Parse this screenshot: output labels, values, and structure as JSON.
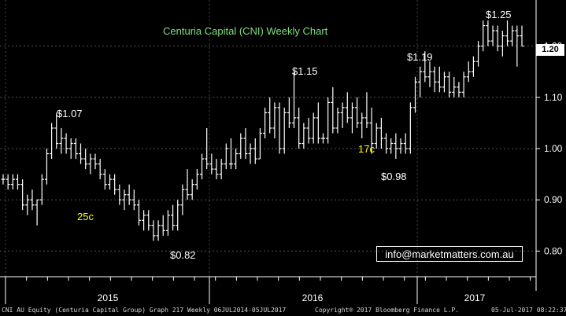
{
  "chart_data": {
    "type": "ohlc",
    "title": "Centuria Capital (CNI) Weekly Chart",
    "frequency": "weekly",
    "yticks": [
      0.8,
      0.9,
      1.0,
      1.1,
      1.2
    ],
    "ytick_labels": [
      "0.80",
      "0.90",
      "1.00",
      "1.10",
      "1.20"
    ],
    "ylim": [
      0.75,
      1.29
    ],
    "last_price": 1.2,
    "last_price_label": "1.20",
    "year_labels": [
      "2015",
      "2016",
      "2017"
    ],
    "annotations": [
      {
        "text": "$1.07",
        "color": "#ffffff"
      },
      {
        "text": "25c",
        "color": "#ffff00"
      },
      {
        "text": "$0.82",
        "color": "#ffffff"
      },
      {
        "text": "$1.15",
        "color": "#ffffff"
      },
      {
        "text": "17c",
        "color": "#ffff00"
      },
      {
        "text": "$0.98",
        "color": "#ffffff"
      },
      {
        "text": "$1.19",
        "color": "#ffffff"
      },
      {
        "text": "$1.25",
        "color": "#ffffff"
      }
    ],
    "bars": [
      [
        0.94,
        0.95,
        0.93,
        0.94
      ],
      [
        0.94,
        0.95,
        0.92,
        0.93
      ],
      [
        0.93,
        0.95,
        0.92,
        0.94
      ],
      [
        0.94,
        0.95,
        0.92,
        0.93
      ],
      [
        0.93,
        0.94,
        0.88,
        0.89
      ],
      [
        0.89,
        0.91,
        0.87,
        0.9
      ],
      [
        0.9,
        0.92,
        0.88,
        0.89
      ],
      [
        0.89,
        0.9,
        0.85,
        0.9
      ],
      [
        0.9,
        0.95,
        0.89,
        0.94
      ],
      [
        0.94,
        1.0,
        0.93,
        0.99
      ],
      [
        0.99,
        1.05,
        0.98,
        1.04
      ],
      [
        1.04,
        1.07,
        1.0,
        1.01
      ],
      [
        1.01,
        1.04,
        0.99,
        1.02
      ],
      [
        1.02,
        1.03,
        0.99,
        1.0
      ],
      [
        1.0,
        1.02,
        0.98,
        1.01
      ],
      [
        1.01,
        1.02,
        0.98,
        0.99
      ],
      [
        0.99,
        1.01,
        0.97,
        0.98
      ],
      [
        0.98,
        1.0,
        0.96,
        0.97
      ],
      [
        0.97,
        0.99,
        0.95,
        0.98
      ],
      [
        0.98,
        0.99,
        0.96,
        0.97
      ],
      [
        0.97,
        0.98,
        0.94,
        0.95
      ],
      [
        0.95,
        0.96,
        0.92,
        0.93
      ],
      [
        0.93,
        0.95,
        0.92,
        0.94
      ],
      [
        0.94,
        0.95,
        0.91,
        0.92
      ],
      [
        0.92,
        0.93,
        0.89,
        0.9
      ],
      [
        0.9,
        0.92,
        0.88,
        0.91
      ],
      [
        0.91,
        0.93,
        0.89,
        0.9
      ],
      [
        0.9,
        0.92,
        0.88,
        0.89
      ],
      [
        0.89,
        0.9,
        0.85,
        0.86
      ],
      [
        0.86,
        0.88,
        0.84,
        0.87
      ],
      [
        0.87,
        0.88,
        0.84,
        0.85
      ],
      [
        0.85,
        0.86,
        0.82,
        0.83
      ],
      [
        0.83,
        0.86,
        0.82,
        0.85
      ],
      [
        0.85,
        0.87,
        0.83,
        0.84
      ],
      [
        0.84,
        0.88,
        0.83,
        0.87
      ],
      [
        0.87,
        0.89,
        0.84,
        0.85
      ],
      [
        0.85,
        0.9,
        0.84,
        0.89
      ],
      [
        0.89,
        0.93,
        0.87,
        0.92
      ],
      [
        0.92,
        0.96,
        0.9,
        0.91
      ],
      [
        0.91,
        0.94,
        0.9,
        0.93
      ],
      [
        0.93,
        0.96,
        0.92,
        0.95
      ],
      [
        0.95,
        0.99,
        0.94,
        0.98
      ],
      [
        0.98,
        1.04,
        0.96,
        0.97
      ],
      [
        0.97,
        0.99,
        0.95,
        0.96
      ],
      [
        0.96,
        0.98,
        0.94,
        0.95
      ],
      [
        0.95,
        0.98,
        0.94,
        0.97
      ],
      [
        0.97,
        1.01,
        0.96,
        1.0
      ],
      [
        0.97,
        1.02,
        0.96,
        0.97
      ],
      [
        0.97,
        1.0,
        0.96,
        0.99
      ],
      [
        0.99,
        1.03,
        0.98,
        1.02
      ],
      [
        1.02,
        1.04,
        0.98,
        0.99
      ],
      [
        0.99,
        1.01,
        0.97,
        1.0
      ],
      [
        1.0,
        1.02,
        0.97,
        0.98
      ],
      [
        0.98,
        1.04,
        0.98,
        1.03
      ],
      [
        1.03,
        1.08,
        1.02,
        1.07
      ],
      [
        1.07,
        1.1,
        1.03,
        1.04
      ],
      [
        1.04,
        1.09,
        1.02,
        1.08
      ],
      [
        1.08,
        1.09,
        0.99,
        1.0
      ],
      [
        1.0,
        1.08,
        0.99,
        1.07
      ],
      [
        1.07,
        1.1,
        1.04,
        1.05
      ],
      [
        1.05,
        1.15,
        1.04,
        1.06
      ],
      [
        1.06,
        1.08,
        1.0,
        1.01
      ],
      [
        1.01,
        1.05,
        1.0,
        1.04
      ],
      [
        1.04,
        1.06,
        1.01,
        1.02
      ],
      [
        1.02,
        1.07,
        1.01,
        1.06
      ],
      [
        1.06,
        1.09,
        1.01,
        1.02
      ],
      [
        1.02,
        1.03,
        1.01,
        1.02
      ],
      [
        1.02,
        1.1,
        1.01,
        1.09
      ],
      [
        1.09,
        1.12,
        1.03,
        1.04
      ],
      [
        1.04,
        1.08,
        1.03,
        1.07
      ],
      [
        1.07,
        1.09,
        1.04,
        1.08
      ],
      [
        1.08,
        1.11,
        1.05,
        1.06
      ],
      [
        1.06,
        1.09,
        1.03,
        1.08
      ],
      [
        1.08,
        1.1,
        1.04,
        1.05
      ],
      [
        1.05,
        1.07,
        1.02,
        1.06
      ],
      [
        1.06,
        1.11,
        1.04,
        1.05
      ],
      [
        1.05,
        1.08,
        0.99,
        1.01
      ],
      [
        1.01,
        1.05,
        1.0,
        1.04
      ],
      [
        1.04,
        1.06,
        1.0,
        1.02
      ],
      [
        1.02,
        1.03,
        0.99,
        1.0
      ],
      [
        1.0,
        1.02,
        0.99,
        1.01
      ],
      [
        1.01,
        1.03,
        0.98,
        1.0
      ],
      [
        1.0,
        1.02,
        0.99,
        1.01
      ],
      [
        1.01,
        1.03,
        0.99,
        1.0
      ],
      [
        1.0,
        1.09,
        0.99,
        1.08
      ],
      [
        1.08,
        1.14,
        1.07,
        1.13
      ],
      [
        1.13,
        1.16,
        1.1,
        1.15
      ],
      [
        1.15,
        1.19,
        1.13,
        1.14
      ],
      [
        1.14,
        1.17,
        1.12,
        1.15
      ],
      [
        1.15,
        1.16,
        1.11,
        1.13
      ],
      [
        1.13,
        1.16,
        1.11,
        1.12
      ],
      [
        1.12,
        1.15,
        1.11,
        1.14
      ],
      [
        1.14,
        1.15,
        1.1,
        1.11
      ],
      [
        1.11,
        1.14,
        1.1,
        1.12
      ],
      [
        1.12,
        1.13,
        1.1,
        1.11
      ],
      [
        1.11,
        1.15,
        1.1,
        1.14
      ],
      [
        1.14,
        1.17,
        1.13,
        1.15
      ],
      [
        1.15,
        1.18,
        1.14,
        1.17
      ],
      [
        1.17,
        1.21,
        1.16,
        1.2
      ],
      [
        1.2,
        1.25,
        1.19,
        1.24
      ],
      [
        1.24,
        1.25,
        1.2,
        1.21
      ],
      [
        1.21,
        1.24,
        1.2,
        1.23
      ],
      [
        1.23,
        1.24,
        1.19,
        1.2
      ],
      [
        1.2,
        1.23,
        1.18,
        1.22
      ],
      [
        1.22,
        1.25,
        1.2,
        1.21
      ],
      [
        1.21,
        1.24,
        1.2,
        1.23
      ],
      [
        1.23,
        1.24,
        1.16,
        1.22
      ],
      [
        1.22,
        1.24,
        1.2,
        1.2
      ]
    ]
  },
  "email": "info@marketmatters.com.au",
  "footer": {
    "left": "CNI AU Equity (Centuria Capital Group) Graph 217  Weekly 06JUL2014-05JUL2017",
    "middle": "Copyright® 2017 Bloomberg Finance L.P.",
    "right": "05-Jul-2017 08:22:37"
  }
}
